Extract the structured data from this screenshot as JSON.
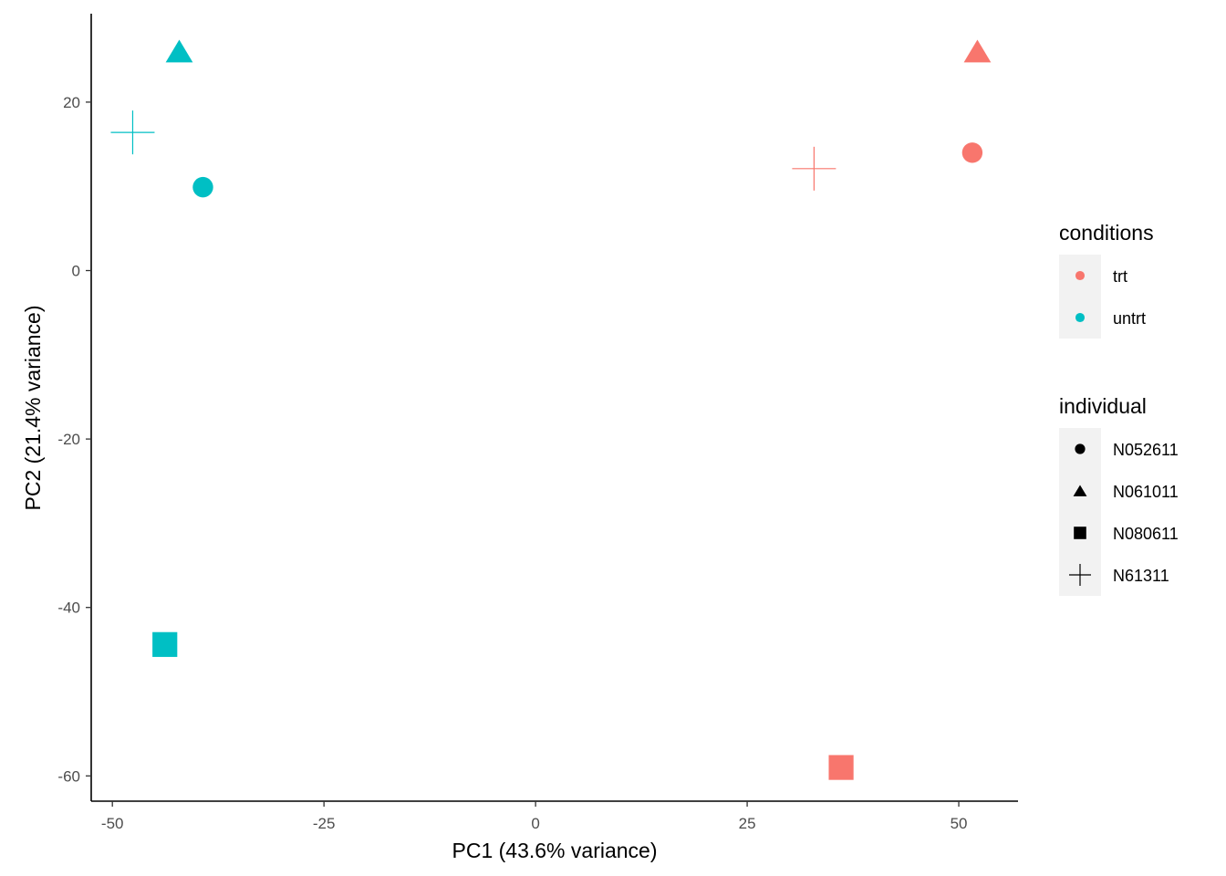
{
  "chart_data": {
    "type": "scatter",
    "title": "",
    "xlabel": "PC1 (43.6% variance)",
    "ylabel": "PC2 (21.4% variance)",
    "xlim": [
      -52.5,
      57
    ],
    "ylim": [
      -63,
      30.5
    ],
    "x_ticks": [
      -50,
      -25,
      0,
      25,
      50
    ],
    "x_tick_labels": [
      "-50",
      "-25",
      "0",
      "25",
      "50"
    ],
    "y_ticks": [
      -60,
      -40,
      -20,
      0,
      20
    ],
    "y_tick_labels": [
      "-60",
      "-40",
      "-20",
      "0",
      "20"
    ],
    "grid": false,
    "legend_position": "right",
    "legends": {
      "color": {
        "title": "conditions",
        "entries": [
          {
            "label": "trt",
            "color": "#F8766D"
          },
          {
            "label": "untrt",
            "color": "#00BFC4"
          }
        ]
      },
      "shape": {
        "title": "individual",
        "entries": [
          {
            "label": "N052611",
            "shape": "circle"
          },
          {
            "label": "N061011",
            "shape": "triangle"
          },
          {
            "label": "N080611",
            "shape": "square"
          },
          {
            "label": "N61311",
            "shape": "plus"
          }
        ]
      }
    },
    "points": [
      {
        "x": 52.2,
        "y": 26.0,
        "conditions": "trt",
        "individual": "N061011"
      },
      {
        "x": 51.6,
        "y": 14.0,
        "conditions": "trt",
        "individual": "N052611"
      },
      {
        "x": 32.9,
        "y": 12.1,
        "conditions": "trt",
        "individual": "N61311"
      },
      {
        "x": 36.1,
        "y": -59.0,
        "conditions": "trt",
        "individual": "N080611"
      },
      {
        "x": -42.1,
        "y": 26.0,
        "conditions": "untrt",
        "individual": "N061011"
      },
      {
        "x": -47.6,
        "y": 16.4,
        "conditions": "untrt",
        "individual": "N61311"
      },
      {
        "x": -39.3,
        "y": 9.9,
        "conditions": "untrt",
        "individual": "N052611"
      },
      {
        "x": -43.8,
        "y": -44.4,
        "conditions": "untrt",
        "individual": "N080611"
      }
    ]
  }
}
